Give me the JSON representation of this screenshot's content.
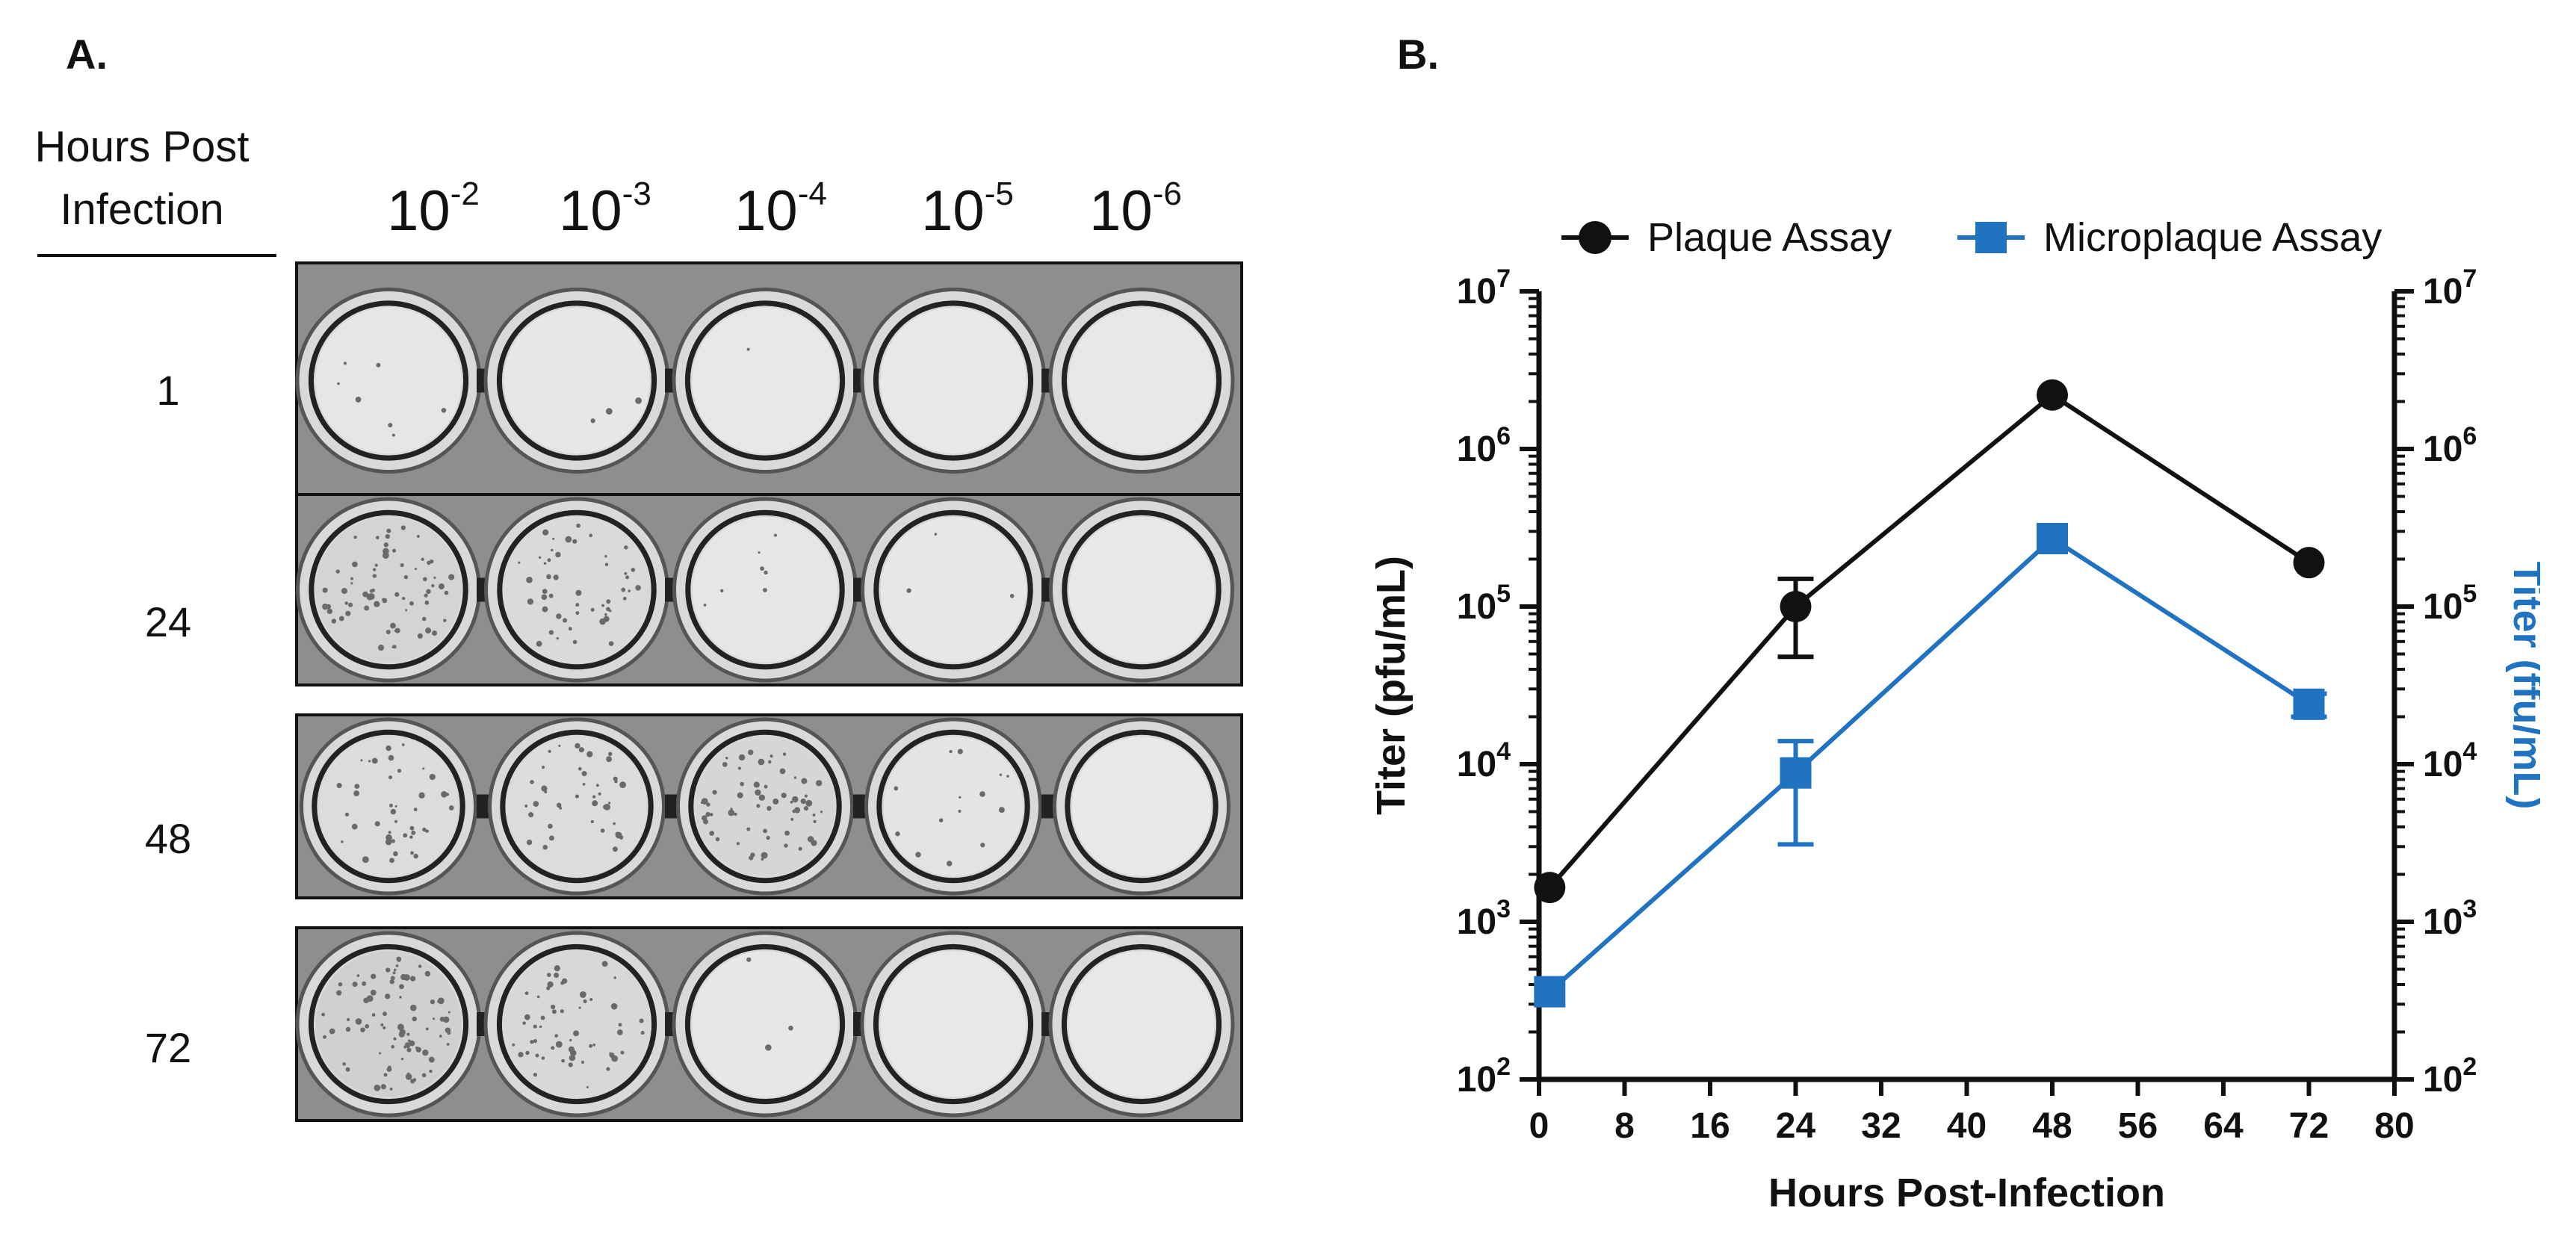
{
  "panelA": {
    "label": "A.",
    "header_line1": "Hours Post",
    "header_line2": "Infection",
    "dilutions": [
      {
        "base": "10",
        "exp": "-2"
      },
      {
        "base": "10",
        "exp": "-3"
      },
      {
        "base": "10",
        "exp": "-4"
      },
      {
        "base": "10",
        "exp": "-5"
      },
      {
        "base": "10",
        "exp": "-6"
      }
    ],
    "rows": [
      {
        "hours": "1",
        "density": [
          0.05,
          0.02,
          0.01,
          0.0,
          0.0
        ]
      },
      {
        "hours": "24",
        "density": [
          0.5,
          0.35,
          0.05,
          0.02,
          0.0
        ]
      },
      {
        "hours": "48",
        "density": [
          0.3,
          0.3,
          0.45,
          0.1,
          0.0
        ]
      },
      {
        "hours": "72",
        "density": [
          0.6,
          0.4,
          0.02,
          0.0,
          0.0
        ]
      }
    ]
  },
  "panelB": {
    "label": "B."
  },
  "chart_data": {
    "type": "line",
    "xlabel": "Hours Post-Infection",
    "ylabel": "Titer (pfu/mL)",
    "ylabel_right": "Titer (ffu/mL)",
    "xlim": [
      0,
      80
    ],
    "xticks": [
      "0",
      "8",
      "16",
      "24",
      "32",
      "40",
      "48",
      "56",
      "64",
      "72",
      "80"
    ],
    "ylim": [
      100,
      10000000
    ],
    "yscale": "log",
    "yticks": [
      {
        "base": "10",
        "exp": "2"
      },
      {
        "base": "10",
        "exp": "3"
      },
      {
        "base": "10",
        "exp": "4"
      },
      {
        "base": "10",
        "exp": "5"
      },
      {
        "base": "10",
        "exp": "6"
      },
      {
        "base": "10",
        "exp": "7"
      }
    ],
    "legend_position": "top",
    "grid": false,
    "series": [
      {
        "name": "Plaque Assay",
        "color": "#111111",
        "marker": "circle",
        "x": [
          1,
          24,
          48,
          72
        ],
        "y": [
          1650,
          100000,
          2200000,
          190000
        ],
        "err_low": [
          null,
          48000,
          null,
          null
        ],
        "err_high": [
          null,
          150000,
          null,
          null
        ]
      },
      {
        "name": "Microplaque Assay",
        "color": "#1f73c0",
        "marker": "square",
        "x": [
          1,
          24,
          48,
          72
        ],
        "y": [
          360,
          8800,
          270000,
          24000
        ],
        "err_low": [
          null,
          3100,
          null,
          20000
        ],
        "err_high": [
          null,
          14000,
          null,
          28000
        ]
      }
    ]
  }
}
